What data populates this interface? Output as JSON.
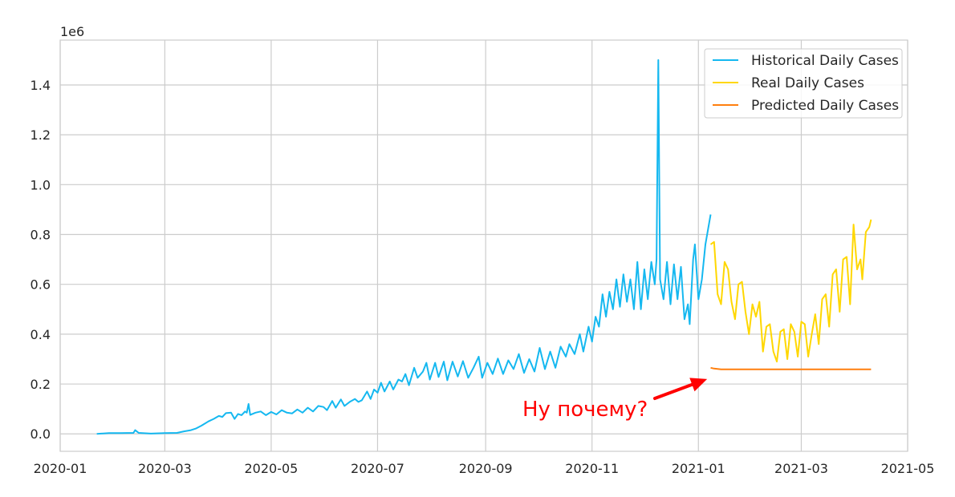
{
  "chart_data": {
    "type": "line",
    "title": "",
    "xlabel": "",
    "ylabel": "",
    "y_offset_label": "1e6",
    "x_range": [
      "2020-01-01",
      "2021-05-01"
    ],
    "ylim": [
      -0.07,
      1.58
    ],
    "x_ticks": [
      "2020-01",
      "2020-03",
      "2020-05",
      "2020-07",
      "2020-09",
      "2020-11",
      "2021-01",
      "2021-03",
      "2021-05"
    ],
    "y_ticks": [
      "0.0",
      "0.2",
      "0.4",
      "0.6",
      "0.8",
      "1.0",
      "1.2",
      "1.4"
    ],
    "grid": true,
    "legend_position": "upper right",
    "series": [
      {
        "name": "Historical Daily Cases",
        "color": "#15b8f0",
        "points": [
          [
            "2020-01-22",
            0.0
          ],
          [
            "2020-01-29",
            0.003
          ],
          [
            "2020-02-05",
            0.003
          ],
          [
            "2020-02-12",
            0.004
          ],
          [
            "2020-02-13",
            0.015
          ],
          [
            "2020-02-15",
            0.004
          ],
          [
            "2020-02-22",
            0.001
          ],
          [
            "2020-03-01",
            0.003
          ],
          [
            "2020-03-08",
            0.004
          ],
          [
            "2020-03-12",
            0.01
          ],
          [
            "2020-03-16",
            0.015
          ],
          [
            "2020-03-19",
            0.022
          ],
          [
            "2020-03-22",
            0.033
          ],
          [
            "2020-03-26",
            0.05
          ],
          [
            "2020-03-29",
            0.06
          ],
          [
            "2020-04-01",
            0.072
          ],
          [
            "2020-04-03",
            0.068
          ],
          [
            "2020-04-05",
            0.083
          ],
          [
            "2020-04-08",
            0.085
          ],
          [
            "2020-04-10",
            0.06
          ],
          [
            "2020-04-12",
            0.08
          ],
          [
            "2020-04-14",
            0.075
          ],
          [
            "2020-04-16",
            0.09
          ],
          [
            "2020-04-17",
            0.085
          ],
          [
            "2020-04-18",
            0.12
          ],
          [
            "2020-04-19",
            0.076
          ],
          [
            "2020-04-22",
            0.085
          ],
          [
            "2020-04-25",
            0.09
          ],
          [
            "2020-04-28",
            0.075
          ],
          [
            "2020-05-01",
            0.088
          ],
          [
            "2020-05-04",
            0.078
          ],
          [
            "2020-05-07",
            0.095
          ],
          [
            "2020-05-10",
            0.085
          ],
          [
            "2020-05-13",
            0.082
          ],
          [
            "2020-05-16",
            0.098
          ],
          [
            "2020-05-19",
            0.085
          ],
          [
            "2020-05-22",
            0.105
          ],
          [
            "2020-05-25",
            0.09
          ],
          [
            "2020-05-28",
            0.112
          ],
          [
            "2020-05-31",
            0.108
          ],
          [
            "2020-06-02",
            0.095
          ],
          [
            "2020-06-05",
            0.132
          ],
          [
            "2020-06-07",
            0.105
          ],
          [
            "2020-06-10",
            0.138
          ],
          [
            "2020-06-12",
            0.112
          ],
          [
            "2020-06-15",
            0.128
          ],
          [
            "2020-06-18",
            0.14
          ],
          [
            "2020-06-20",
            0.128
          ],
          [
            "2020-06-22",
            0.135
          ],
          [
            "2020-06-25",
            0.17
          ],
          [
            "2020-06-27",
            0.14
          ],
          [
            "2020-06-29",
            0.178
          ],
          [
            "2020-07-01",
            0.165
          ],
          [
            "2020-07-03",
            0.205
          ],
          [
            "2020-07-05",
            0.17
          ],
          [
            "2020-07-08",
            0.21
          ],
          [
            "2020-07-10",
            0.178
          ],
          [
            "2020-07-13",
            0.218
          ],
          [
            "2020-07-15",
            0.21
          ],
          [
            "2020-07-17",
            0.24
          ],
          [
            "2020-07-19",
            0.195
          ],
          [
            "2020-07-22",
            0.265
          ],
          [
            "2020-07-24",
            0.225
          ],
          [
            "2020-07-27",
            0.25
          ],
          [
            "2020-07-29",
            0.285
          ],
          [
            "2020-07-31",
            0.218
          ],
          [
            "2020-08-03",
            0.285
          ],
          [
            "2020-08-05",
            0.228
          ],
          [
            "2020-08-08",
            0.29
          ],
          [
            "2020-08-10",
            0.215
          ],
          [
            "2020-08-13",
            0.29
          ],
          [
            "2020-08-16",
            0.23
          ],
          [
            "2020-08-19",
            0.292
          ],
          [
            "2020-08-22",
            0.225
          ],
          [
            "2020-08-25",
            0.265
          ],
          [
            "2020-08-28",
            0.31
          ],
          [
            "2020-08-30",
            0.225
          ],
          [
            "2020-09-02",
            0.285
          ],
          [
            "2020-09-05",
            0.24
          ],
          [
            "2020-09-08",
            0.302
          ],
          [
            "2020-09-11",
            0.24
          ],
          [
            "2020-09-14",
            0.295
          ],
          [
            "2020-09-17",
            0.26
          ],
          [
            "2020-09-20",
            0.32
          ],
          [
            "2020-09-23",
            0.245
          ],
          [
            "2020-09-26",
            0.3
          ],
          [
            "2020-09-29",
            0.25
          ],
          [
            "2020-10-02",
            0.345
          ],
          [
            "2020-10-05",
            0.26
          ],
          [
            "2020-10-08",
            0.33
          ],
          [
            "2020-10-11",
            0.265
          ],
          [
            "2020-10-14",
            0.35
          ],
          [
            "2020-10-17",
            0.31
          ],
          [
            "2020-10-19",
            0.36
          ],
          [
            "2020-10-22",
            0.32
          ],
          [
            "2020-10-25",
            0.4
          ],
          [
            "2020-10-27",
            0.33
          ],
          [
            "2020-10-30",
            0.43
          ],
          [
            "2020-11-01",
            0.37
          ],
          [
            "2020-11-03",
            0.47
          ],
          [
            "2020-11-05",
            0.43
          ],
          [
            "2020-11-07",
            0.56
          ],
          [
            "2020-11-09",
            0.47
          ],
          [
            "2020-11-11",
            0.57
          ],
          [
            "2020-11-13",
            0.5
          ],
          [
            "2020-11-15",
            0.62
          ],
          [
            "2020-11-17",
            0.51
          ],
          [
            "2020-11-19",
            0.64
          ],
          [
            "2020-11-21",
            0.53
          ],
          [
            "2020-11-23",
            0.62
          ],
          [
            "2020-11-25",
            0.5
          ],
          [
            "2020-11-27",
            0.69
          ],
          [
            "2020-11-29",
            0.5
          ],
          [
            "2020-12-01",
            0.66
          ],
          [
            "2020-12-03",
            0.54
          ],
          [
            "2020-12-05",
            0.69
          ],
          [
            "2020-12-07",
            0.6
          ],
          [
            "2020-12-08",
            0.7
          ],
          [
            "2020-12-09",
            1.5
          ],
          [
            "2020-12-10",
            0.62
          ],
          [
            "2020-12-12",
            0.54
          ],
          [
            "2020-12-14",
            0.69
          ],
          [
            "2020-12-16",
            0.52
          ],
          [
            "2020-12-18",
            0.68
          ],
          [
            "2020-12-20",
            0.54
          ],
          [
            "2020-12-22",
            0.67
          ],
          [
            "2020-12-24",
            0.46
          ],
          [
            "2020-12-26",
            0.52
          ],
          [
            "2020-12-27",
            0.44
          ],
          [
            "2020-12-29",
            0.7
          ],
          [
            "2020-12-30",
            0.76
          ],
          [
            "2021-01-01",
            0.54
          ],
          [
            "2021-01-03",
            0.62
          ],
          [
            "2021-01-05",
            0.76
          ],
          [
            "2021-01-08",
            0.88
          ]
        ]
      },
      {
        "name": "Real Daily Cases",
        "color": "#ffd700",
        "points": [
          [
            "2021-01-08",
            0.76
          ],
          [
            "2021-01-10",
            0.77
          ],
          [
            "2021-01-12",
            0.56
          ],
          [
            "2021-01-14",
            0.52
          ],
          [
            "2021-01-16",
            0.69
          ],
          [
            "2021-01-18",
            0.66
          ],
          [
            "2021-01-20",
            0.53
          ],
          [
            "2021-01-22",
            0.46
          ],
          [
            "2021-01-24",
            0.6
          ],
          [
            "2021-01-26",
            0.61
          ],
          [
            "2021-01-28",
            0.49
          ],
          [
            "2021-01-30",
            0.4
          ],
          [
            "2021-02-01",
            0.52
          ],
          [
            "2021-02-03",
            0.47
          ],
          [
            "2021-02-05",
            0.53
          ],
          [
            "2021-02-07",
            0.33
          ],
          [
            "2021-02-09",
            0.43
          ],
          [
            "2021-02-11",
            0.44
          ],
          [
            "2021-02-13",
            0.33
          ],
          [
            "2021-02-15",
            0.29
          ],
          [
            "2021-02-17",
            0.41
          ],
          [
            "2021-02-19",
            0.42
          ],
          [
            "2021-02-21",
            0.3
          ],
          [
            "2021-02-23",
            0.44
          ],
          [
            "2021-02-25",
            0.41
          ],
          [
            "2021-02-27",
            0.31
          ],
          [
            "2021-03-01",
            0.45
          ],
          [
            "2021-03-03",
            0.44
          ],
          [
            "2021-03-05",
            0.31
          ],
          [
            "2021-03-07",
            0.4
          ],
          [
            "2021-03-09",
            0.48
          ],
          [
            "2021-03-11",
            0.36
          ],
          [
            "2021-03-13",
            0.54
          ],
          [
            "2021-03-15",
            0.56
          ],
          [
            "2021-03-17",
            0.43
          ],
          [
            "2021-03-19",
            0.64
          ],
          [
            "2021-03-21",
            0.66
          ],
          [
            "2021-03-23",
            0.49
          ],
          [
            "2021-03-25",
            0.7
          ],
          [
            "2021-03-27",
            0.71
          ],
          [
            "2021-03-29",
            0.52
          ],
          [
            "2021-03-31",
            0.84
          ],
          [
            "2021-04-02",
            0.66
          ],
          [
            "2021-04-04",
            0.7
          ],
          [
            "2021-04-05",
            0.62
          ],
          [
            "2021-04-07",
            0.81
          ],
          [
            "2021-04-09",
            0.83
          ],
          [
            "2021-04-10",
            0.86
          ]
        ]
      },
      {
        "name": "Predicted Daily Cases",
        "color": "#ff7f0e",
        "points": [
          [
            "2021-01-08",
            0.265
          ],
          [
            "2021-01-10",
            0.262
          ],
          [
            "2021-01-14",
            0.259
          ],
          [
            "2021-01-20",
            0.259
          ],
          [
            "2021-02-15",
            0.259
          ],
          [
            "2021-03-15",
            0.259
          ],
          [
            "2021-04-10",
            0.259
          ]
        ]
      }
    ],
    "annotation": {
      "text": "Ну почему?",
      "color": "#ff0000",
      "arrow_target": [
        "2021-01-06",
        0.22
      ]
    }
  }
}
